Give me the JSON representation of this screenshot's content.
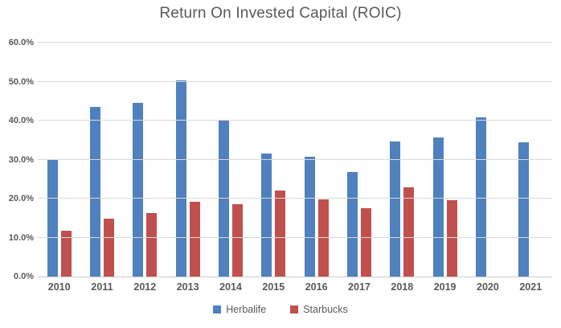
{
  "title": "Return On Invested Capital (ROIC)",
  "colors": {
    "herbalife": "#4e81bd",
    "starbucks": "#c0504d",
    "title_text": "#595959",
    "axis_text": "#595959",
    "gridline": "#d9d9d9",
    "axis_line": "#c9c9c9",
    "background": "#ffffff"
  },
  "legend": {
    "items": [
      {
        "label": "Herbalife",
        "color": "#4e81bd"
      },
      {
        "label": "Starbucks",
        "color": "#c0504d"
      }
    ],
    "position": "bottom"
  },
  "chart_data": {
    "type": "bar",
    "title": "Return On Invested Capital (ROIC)",
    "categories": [
      "2010",
      "2011",
      "2012",
      "2013",
      "2014",
      "2015",
      "2016",
      "2017",
      "2018",
      "2019",
      "2020",
      "2021"
    ],
    "series": [
      {
        "name": "Herbalife",
        "color": "#4e81bd",
        "values": [
          29.8,
          43.5,
          44.6,
          50.3,
          40.1,
          31.6,
          30.8,
          26.9,
          34.6,
          35.6,
          40.8,
          34.5
        ]
      },
      {
        "name": "Starbucks",
        "color": "#c0504d",
        "values": [
          11.8,
          14.8,
          16.2,
          19.1,
          18.5,
          22.0,
          19.7,
          17.5,
          22.8,
          19.5,
          null,
          null
        ]
      }
    ],
    "xlabel": "",
    "ylabel": "",
    "ylim": [
      0,
      60
    ],
    "ytick_step": 10,
    "ytick_labels": [
      "0.0%",
      "10.0%",
      "20.0%",
      "30.0%",
      "40.0%",
      "50.0%",
      "60.0%"
    ],
    "grid": true,
    "legend_position": "bottom",
    "value_unit": "percent"
  }
}
